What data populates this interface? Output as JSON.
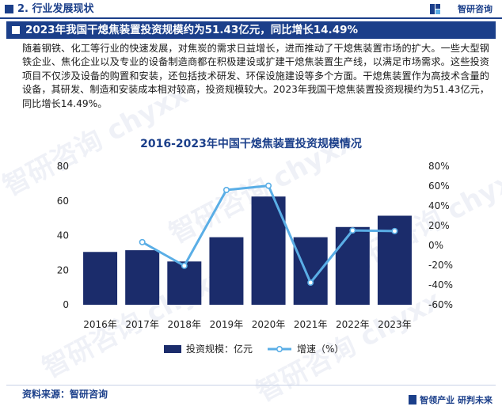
{
  "header": {
    "section_title": "2. 行业发展现状",
    "brand": "智研咨询"
  },
  "banner": {
    "title": "2023年我国干熄焦装置投资规模约为51.43亿元，同比增长14.49%"
  },
  "paragraph": "随着钢铁、化工等行业的快速发展，对焦炭的需求日益增长，进而推动了干熄焦装置市场的扩大。一些大型钢铁企业、焦化企业以及专业的设备制造商都在积极建设或扩建干熄焦装置生产线，以满足市场需求。这些投资项目不仅涉及设备的购置和安装，还包括技术研发、环保设施建设等多个方面。干熄焦装置作为高技术含量的设备，其研发、制造和安装成本相对较高，投资规模较大。2023年我国干熄焦装置投资规模约为51.43亿元，同比增长14.49%。",
  "watermark": "智研咨询 chyxx",
  "chart_data": {
    "type": "bar",
    "title": "2016-2023年中国干熄焦装置投资规模情况",
    "categories": [
      "2016年",
      "2017年",
      "2018年",
      "2019年",
      "2020年",
      "2021年",
      "2022年",
      "2023年"
    ],
    "series": [
      {
        "name": "投资规模：亿元",
        "type": "bar",
        "axis": "left",
        "color": "#1b2c6b",
        "values": [
          30.5,
          31.5,
          25.0,
          39.0,
          62.5,
          39.0,
          44.9,
          51.43
        ]
      },
      {
        "name": "增速（%）",
        "type": "line",
        "axis": "right",
        "color": "#5aaee6",
        "values": [
          null,
          3.3,
          -20.6,
          56.0,
          60.3,
          -37.6,
          15.1,
          14.49
        ]
      }
    ],
    "ylim_left": [
      0,
      80
    ],
    "yticks_left": [
      "0",
      "20",
      "40",
      "60",
      "80"
    ],
    "ylim_right": [
      -60,
      80
    ],
    "yticks_right": [
      "-60%",
      "-40%",
      "-20%",
      "0%",
      "20%",
      "40%",
      "60%",
      "80%"
    ],
    "grid": false,
    "legend_position": "bottom"
  },
  "footer": {
    "source": "资料来源：智研咨询",
    "brand_line": "智领产业 研判未来"
  },
  "colors": {
    "brand_blue": "#1b3f8a",
    "bar": "#1b2c6b",
    "line": "#5aaee6"
  }
}
